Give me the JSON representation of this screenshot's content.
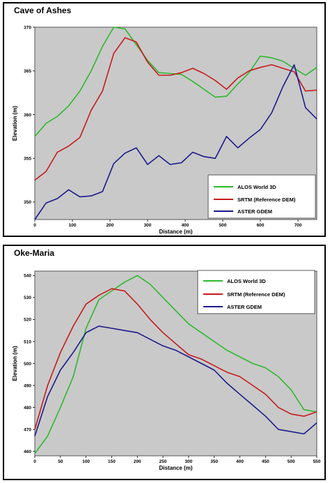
{
  "chart_data": [
    {
      "type": "line",
      "title": "Cave of Ashes",
      "xlabel": "Distance (m)",
      "ylabel": "Elevation (m)",
      "xlim": [
        0,
        750
      ],
      "ylim": [
        348,
        370
      ],
      "xticks": [
        0,
        100,
        200,
        300,
        400,
        500,
        600,
        700
      ],
      "yticks": [
        350,
        355,
        360,
        365,
        370
      ],
      "grid": false,
      "legend_position": "bottom-right",
      "series": [
        {
          "name": "ALOS World 3D",
          "color": "#2db82d",
          "x": [
            0,
            30,
            60,
            90,
            120,
            150,
            180,
            210,
            240,
            270,
            300,
            330,
            360,
            390,
            420,
            450,
            480,
            510,
            540,
            570,
            600,
            630,
            660,
            690,
            720,
            750
          ],
          "y": [
            357.5,
            359.0,
            359.8,
            361.0,
            362.7,
            365.0,
            367.8,
            370.0,
            369.8,
            368.0,
            366.2,
            364.8,
            364.7,
            364.6,
            363.8,
            362.9,
            362.0,
            362.1,
            363.5,
            364.8,
            366.7,
            366.5,
            366.1,
            365.3,
            364.5,
            365.4
          ]
        },
        {
          "name": "SRTM (Reference DEM)",
          "color": "#c81a1a",
          "x": [
            0,
            30,
            60,
            90,
            120,
            150,
            180,
            210,
            240,
            270,
            300,
            330,
            360,
            390,
            420,
            450,
            480,
            510,
            540,
            570,
            600,
            630,
            660,
            690,
            720,
            750
          ],
          "y": [
            352.5,
            353.5,
            355.7,
            356.4,
            357.4,
            360.5,
            362.7,
            367.0,
            368.8,
            368.3,
            366.0,
            364.5,
            364.5,
            364.8,
            365.3,
            364.7,
            363.9,
            362.9,
            364.2,
            365.0,
            365.4,
            365.7,
            365.3,
            364.9,
            362.7,
            362.8
          ]
        },
        {
          "name": "ASTER GDEM",
          "color": "#1a1a8c",
          "x": [
            0,
            30,
            60,
            90,
            120,
            150,
            180,
            210,
            240,
            270,
            300,
            330,
            360,
            390,
            420,
            450,
            480,
            510,
            540,
            570,
            600,
            630,
            660,
            690,
            720,
            750
          ],
          "y": [
            348.0,
            349.9,
            350.4,
            351.4,
            350.6,
            350.7,
            351.2,
            354.4,
            355.6,
            356.2,
            354.3,
            355.3,
            354.3,
            354.5,
            355.7,
            355.2,
            355.0,
            357.5,
            356.2,
            357.3,
            358.3,
            360.2,
            363.2,
            365.7,
            360.8,
            359.5
          ]
        }
      ]
    },
    {
      "type": "line",
      "title": "Oke-Maria",
      "xlabel": "Distance (m)",
      "ylabel": "Elevation (m)",
      "xlim": [
        0,
        550
      ],
      "ylim": [
        458,
        542
      ],
      "xticks": [
        0,
        50,
        100,
        150,
        200,
        250,
        300,
        350,
        400,
        450,
        500,
        550
      ],
      "yticks": [
        460,
        470,
        480,
        490,
        500,
        510,
        520,
        530,
        540
      ],
      "grid": false,
      "legend_position": "top-right",
      "series": [
        {
          "name": "ALOS World 3D",
          "color": "#2db82d",
          "x": [
            0,
            25,
            50,
            75,
            100,
            125,
            150,
            175,
            200,
            225,
            250,
            275,
            300,
            325,
            350,
            375,
            400,
            425,
            450,
            475,
            500,
            525,
            550
          ],
          "y": [
            459,
            467,
            480,
            494,
            516,
            529,
            533,
            537,
            540,
            536,
            530,
            524,
            518,
            514,
            510,
            506,
            503,
            500,
            498,
            494,
            488,
            479,
            478
          ]
        },
        {
          "name": "SRTM (Reference DEM)",
          "color": "#c81a1a",
          "x": [
            0,
            25,
            50,
            75,
            100,
            125,
            150,
            175,
            200,
            225,
            250,
            275,
            300,
            325,
            350,
            375,
            400,
            425,
            450,
            475,
            500,
            525,
            550
          ],
          "y": [
            470,
            490,
            505,
            517,
            527,
            531,
            534,
            533,
            527,
            520,
            514,
            509,
            504,
            502,
            499,
            496,
            494,
            490,
            486,
            480,
            477,
            476,
            478
          ]
        },
        {
          "name": "ASTER GDEM",
          "color": "#1a1a8c",
          "x": [
            0,
            25,
            50,
            75,
            100,
            125,
            150,
            175,
            200,
            225,
            250,
            275,
            300,
            325,
            350,
            375,
            400,
            425,
            450,
            475,
            500,
            525,
            550
          ],
          "y": [
            467,
            485,
            497,
            505,
            514,
            517,
            516,
            515,
            514,
            511,
            508,
            506,
            503,
            500,
            497,
            491,
            486,
            481,
            476,
            470,
            469,
            468,
            473
          ]
        }
      ]
    }
  ]
}
